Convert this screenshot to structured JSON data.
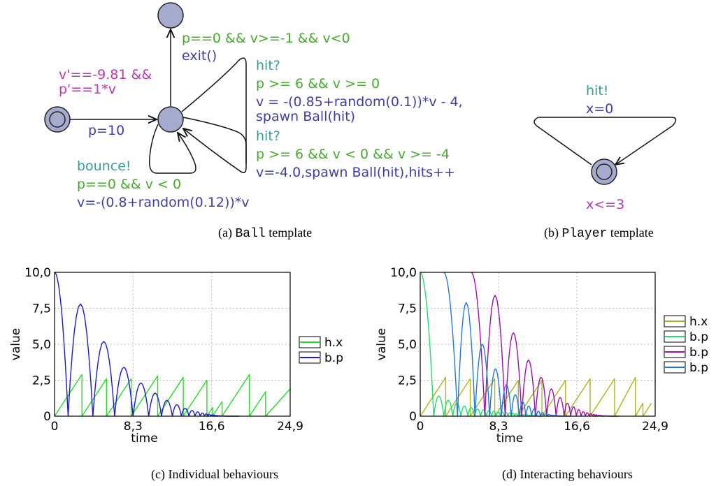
{
  "ball_template": {
    "exit_guard": "p==0 && v>=-1 && v<0",
    "exit_update": "exit()",
    "invariant_line1": "v'==-9.81 &&",
    "invariant_line2": "p'==1*v",
    "init_update": "p=10",
    "hit1_sync": "hit?",
    "hit1_guard": "p >= 6 && v >= 0",
    "hit1_update_line1": "v = -(0.85+random(0.1))*v - 4,",
    "hit1_update_line2": "spawn Ball(hit)",
    "hit2_sync": "hit?",
    "hit2_guard": "p >= 6 && v < 0 && v >= -4",
    "hit2_update": "v=-4.0,spawn Ball(hit),hits++",
    "bounce_sync": "bounce!",
    "bounce_guard": "p==0 && v < 0",
    "bounce_update": "v=-(0.8+random(0.12))*v"
  },
  "player_template": {
    "sync": "hit!",
    "update": "x=0",
    "invariant": "x<=3"
  },
  "captions": {
    "a_prefix": "(a) ",
    "a_code": "Ball",
    "a_suffix": " template",
    "b_prefix": "(b) ",
    "b_code": "Player",
    "b_suffix": " template",
    "c": "(c) Individual behaviours",
    "d": "(d) Interacting behaviours"
  },
  "colors": {
    "guard": "#4aa832",
    "sync": "#3a9a9a",
    "invariant": "#b23cb2",
    "update": "#4040a0",
    "state_fill": "#a6aacc"
  },
  "chart_data": [
    {
      "type": "line",
      "title": "",
      "xlabel": "time",
      "ylabel": "value",
      "xticks": [
        "0",
        "8,3",
        "16,6",
        "24,9"
      ],
      "yticks": [
        "0",
        "2,5",
        "5,0",
        "7,5",
        "10,0"
      ],
      "xlim": [
        0,
        24.9
      ],
      "ylim": [
        0,
        10
      ],
      "grid": true,
      "legend_position": "right",
      "series": [
        {
          "name": "h.x",
          "color": "#22dd22",
          "x": [
            0,
            2.9,
            2.9,
            5.5,
            5.5,
            8.1,
            8.1,
            10.9,
            10.9,
            13.6,
            13.6,
            16.1,
            16.1,
            16.7,
            16.7,
            17.7,
            17.7,
            20.6,
            20.6,
            22.3,
            22.3,
            24.9
          ],
          "y": [
            0,
            2.9,
            0,
            2.6,
            0,
            2.6,
            0,
            2.8,
            0,
            2.7,
            0,
            2.5,
            0,
            0.6,
            0,
            1.0,
            0,
            2.9,
            0,
            1.7,
            0,
            1.9
          ]
        },
        {
          "name": "b.p",
          "color": "#1a1acc",
          "kind": "bounces",
          "start": [
            0,
            10
          ],
          "bounce_times": [
            1.43,
            4.05,
            6.35,
            8.3,
            9.95,
            11.3,
            12.45,
            13.4,
            14.2,
            14.85,
            15.4,
            15.85,
            16.2,
            16.5,
            16.75,
            16.95,
            17.15,
            17.3,
            17.45,
            17.6,
            17.72,
            17.84,
            17.94,
            18.04,
            18.12,
            18.2,
            18.28,
            18.35,
            18.42,
            18.5
          ],
          "peaks": [
            7.8,
            5.2,
            3.4,
            2.3,
            1.6,
            1.1,
            0.8,
            0.55,
            0.4,
            0.3,
            0.22,
            0.16,
            0.12,
            0.09,
            0.07,
            0.05,
            0.04,
            0.03,
            0.025,
            0.02,
            0.015,
            0.012,
            0.01,
            0.008,
            0.006,
            0.005,
            0.004,
            0.003,
            0.002
          ],
          "tail_end": 19.5
        }
      ]
    },
    {
      "type": "line",
      "title": "",
      "xlabel": "time",
      "ylabel": "value",
      "xticks": [
        "0",
        "8,3",
        "16,6",
        "24,9"
      ],
      "yticks": [
        "0",
        "2,5",
        "5,0",
        "7,5",
        "10,0"
      ],
      "xlim": [
        0,
        24.9
      ],
      "ylim": [
        0,
        10
      ],
      "grid": true,
      "legend_position": "right",
      "series": [
        {
          "name": "h.x",
          "color": "#a8b51c",
          "x": [
            0,
            2.7,
            2.7,
            5.3,
            5.3,
            7.9,
            7.9,
            10.4,
            10.4,
            12.9,
            12.9,
            15.4,
            15.4,
            18.0,
            18.0,
            20.6,
            20.6,
            22.8,
            22.8,
            23.6,
            23.6,
            24.5
          ],
          "y": [
            0,
            2.7,
            0,
            2.6,
            0,
            2.6,
            0,
            2.5,
            0,
            2.5,
            0,
            2.5,
            0,
            2.6,
            0,
            2.6,
            0,
            2.7,
            0,
            0.9,
            0,
            0.9
          ]
        },
        {
          "name": "b.p",
          "color": "#22dd66",
          "kind": "bounces",
          "start": [
            0,
            10
          ],
          "bounce_times": [
            1.43,
            2.5,
            3.45,
            4.3,
            5.05,
            5.75,
            6.4,
            7.0,
            7.55,
            8.05,
            8.5,
            8.9,
            9.3,
            9.65,
            10.0,
            10.3,
            10.6,
            10.9,
            11.2,
            11.5,
            11.75,
            12.0,
            12.25,
            12.5
          ],
          "peaks": [
            1.4,
            1.1,
            0.9,
            0.7,
            0.6,
            0.5,
            0.45,
            0.4,
            0.35,
            0.3,
            0.28,
            0.25,
            0.22,
            0.2,
            0.18,
            0.16,
            0.14,
            0.12,
            0.1,
            0.08,
            0.06,
            0.05,
            0.04
          ],
          "tail_end": 12.8
        },
        {
          "name": "b.p",
          "color": "#9911aa",
          "kind": "bounces",
          "start": [
            5.4,
            10
          ],
          "bounce_times": [
            6.85,
            9.0,
            10.75,
            12.2,
            13.4,
            14.4,
            15.25,
            15.95,
            16.55,
            17.05,
            17.5,
            17.9,
            18.25,
            18.55,
            18.8,
            19.05,
            19.25,
            19.45,
            19.62,
            19.78,
            19.92
          ],
          "peaks": [
            8.4,
            5.8,
            3.9,
            2.7,
            1.9,
            1.3,
            0.9,
            0.65,
            0.45,
            0.32,
            0.24,
            0.17,
            0.12,
            0.09,
            0.06,
            0.05,
            0.03,
            0.02,
            0.015,
            0.01
          ],
          "tail_end": 21.0
        },
        {
          "name": "b.p",
          "color": "#2277dd",
          "kind": "bounces",
          "start": [
            2.5,
            10
          ],
          "bounce_times": [
            3.95,
            5.8,
            7.35,
            8.6,
            9.65,
            10.5,
            11.2,
            11.8,
            12.3,
            12.75,
            13.15,
            13.5,
            13.8,
            14.05,
            14.3,
            14.5,
            14.7,
            14.88,
            15.05,
            15.2
          ],
          "peaks": [
            7.9,
            5.0,
            3.3,
            2.2,
            1.5,
            1.0,
            0.7,
            0.5,
            0.35,
            0.25,
            0.18,
            0.12,
            0.08,
            0.06,
            0.04,
            0.03,
            0.02,
            0.015,
            0.01
          ],
          "tail_end": 16.0
        }
      ]
    }
  ]
}
